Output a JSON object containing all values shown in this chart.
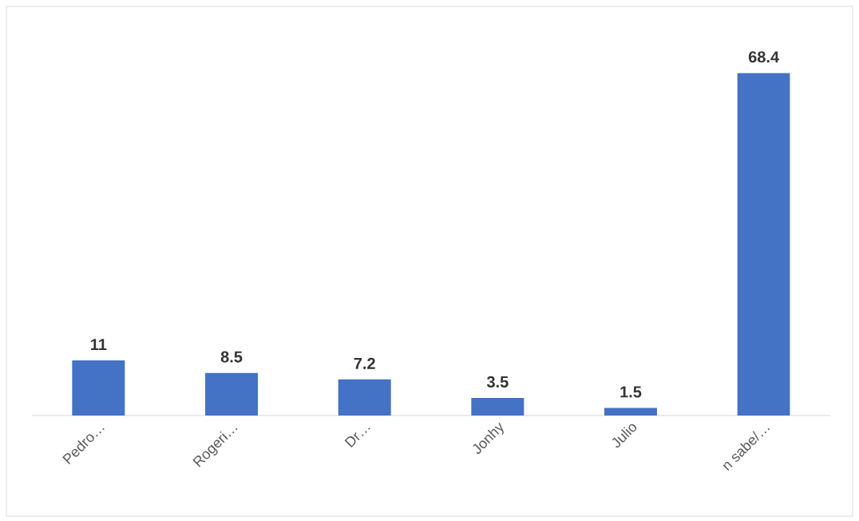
{
  "chart_data": {
    "type": "bar",
    "categories": [
      "Pedro…",
      "Rogeri…",
      "Dr…",
      "Jonhy",
      "Julio",
      "n sabe/…"
    ],
    "values": [
      11,
      8.5,
      7.2,
      3.5,
      1.5,
      68.4
    ],
    "color": "#4472c4",
    "data_labels": true,
    "grid": false
  }
}
